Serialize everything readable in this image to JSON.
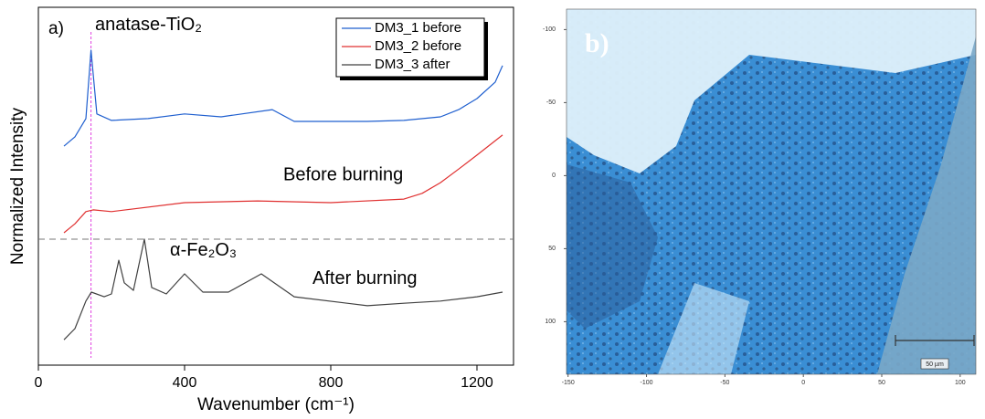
{
  "chart_data": [
    {
      "type": "line",
      "panel_label": "a)",
      "x_label": "Wavenumber (cm⁻¹)",
      "y_label": "Normalized Intensity",
      "xlim": [
        0,
        1300
      ],
      "xticks": [
        0,
        400,
        800,
        1200
      ],
      "ylim": [
        0,
        100
      ],
      "legend": "top-right",
      "series": [
        {
          "name": "DM3_1 before",
          "color": "#1f5fcf",
          "x": [
            70,
            100,
            130,
            144,
            160,
            200,
            300,
            400,
            500,
            640,
            700,
            900,
            1000,
            1100,
            1150,
            1200,
            1250,
            1270
          ],
          "values": [
            61.2,
            63.8,
            68.9,
            88.0,
            70.2,
            68.4,
            68.9,
            70.2,
            69.4,
            71.4,
            68.1,
            68.1,
            68.4,
            69.4,
            71.4,
            74.5,
            79.1,
            83.7
          ]
        },
        {
          "name": "DM3_2 before",
          "color": "#e03030",
          "x": [
            70,
            100,
            130,
            150,
            200,
            400,
            600,
            800,
            1000,
            1050,
            1100,
            1150,
            1200,
            1270
          ],
          "values": [
            37.0,
            39.5,
            42.9,
            43.4,
            42.9,
            45.4,
            45.9,
            45.4,
            46.4,
            48.0,
            51.0,
            54.8,
            58.7,
            64.3
          ]
        },
        {
          "name": "DM3_3 after",
          "color": "#404040",
          "x": [
            70,
            100,
            130,
            145,
            180,
            200,
            220,
            235,
            260,
            290,
            310,
            350,
            400,
            450,
            520,
            610,
            700,
            900,
            1000,
            1100,
            1200,
            1270
          ],
          "values": [
            7.1,
            10.2,
            17.9,
            20.4,
            19.1,
            19.9,
            29.3,
            23.0,
            20.9,
            35.2,
            21.7,
            19.9,
            25.5,
            20.4,
            20.4,
            25.5,
            19.1,
            16.6,
            17.3,
            17.9,
            19.1,
            20.4
          ]
        }
      ],
      "vline": 144,
      "hline": 35.2,
      "annotations": [
        {
          "text": "anatase-TiO₂",
          "x": 155,
          "y": 95
        },
        {
          "text": "Before burning",
          "x": 670,
          "y": 53
        },
        {
          "text": "α-Fe₂O₃",
          "x": 360,
          "y": 32
        },
        {
          "text": "After burning",
          "x": 750,
          "y": 24
        }
      ]
    },
    {
      "type": "image",
      "panel_label": "b)",
      "scale_bar": "50 µm",
      "xlim": [
        -151,
        110
      ],
      "xticks": [
        -150,
        -100,
        -50,
        0,
        50,
        100
      ],
      "ylim": [
        -114,
        136
      ],
      "yticks": [
        -100,
        -50,
        0,
        50,
        100
      ]
    }
  ]
}
